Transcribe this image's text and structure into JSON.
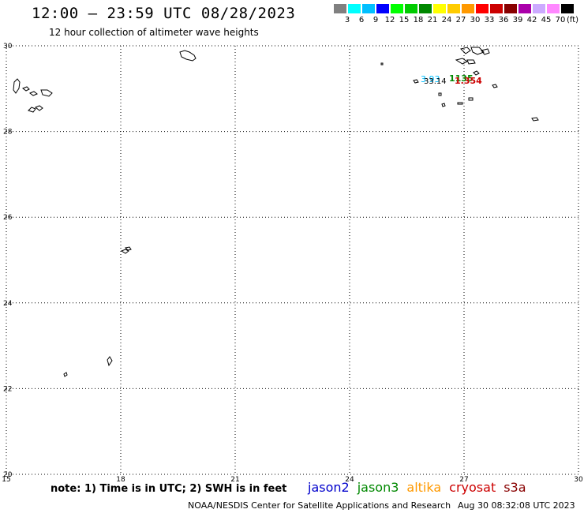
{
  "title": "12:00 – 23:59 UTC 08/28/2023",
  "subtitle": "12 hour collection of altimeter wave heights",
  "legend": {
    "colors": [
      "#808080",
      "#00ffff",
      "#00bfff",
      "#0000ff",
      "#00ff00",
      "#00cc00",
      "#008800",
      "#ffff00",
      "#ffcc00",
      "#ff9900",
      "#ff0000",
      "#cc0000",
      "#880000",
      "#aa00aa",
      "#ccaaff",
      "#ff88ff",
      "#000000"
    ],
    "labels": [
      "3",
      "6",
      "9",
      "12",
      "15",
      "18",
      "21",
      "24",
      "27",
      "30",
      "33",
      "36",
      "39",
      "42",
      "45",
      "70"
    ],
    "unit": "(ft)"
  },
  "axes": {
    "x_ticks": [
      "15",
      "18",
      "21",
      "24",
      "27",
      "30"
    ],
    "y_ticks": [
      "30",
      "28",
      "26",
      "24",
      "22",
      "20"
    ]
  },
  "observations": [
    {
      "value": "3.93",
      "color": "#00bfff"
    },
    {
      "value": "33.14",
      "color": "#000000"
    },
    {
      "value": "1135",
      "color": "#008800"
    },
    {
      "value": "1.354",
      "color": "#cc0000"
    }
  ],
  "note": "note: 1) Time is in UTC; 2) SWH is in feet",
  "satellites": [
    {
      "name": "jason2",
      "color": "#0000cc"
    },
    {
      "name": "jason3",
      "color": "#008800"
    },
    {
      "name": "altika",
      "color": "#ff9900"
    },
    {
      "name": "cryosat",
      "color": "#cc0000"
    },
    {
      "name": "s3a",
      "color": "#880000"
    }
  ],
  "credit": "NOAA/NESDIS Center for Satellite Applications and Research",
  "credit_time": "Aug 30 08:32:08 UTC 2023"
}
